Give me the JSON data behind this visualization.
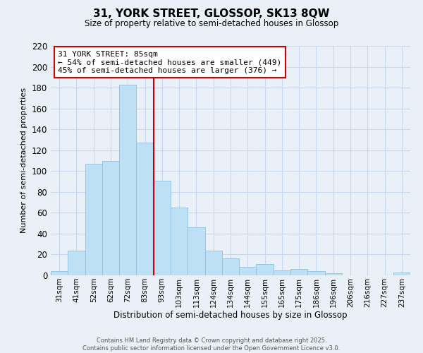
{
  "title": "31, YORK STREET, GLOSSOP, SK13 8QW",
  "subtitle": "Size of property relative to semi-detached houses in Glossop",
  "xlabel": "Distribution of semi-detached houses by size in Glossop",
  "ylabel": "Number of semi-detached properties",
  "bar_labels": [
    "31sqm",
    "41sqm",
    "52sqm",
    "62sqm",
    "72sqm",
    "83sqm",
    "93sqm",
    "103sqm",
    "113sqm",
    "124sqm",
    "134sqm",
    "144sqm",
    "155sqm",
    "165sqm",
    "175sqm",
    "186sqm",
    "196sqm",
    "206sqm",
    "216sqm",
    "227sqm",
    "237sqm"
  ],
  "bar_values": [
    4,
    24,
    107,
    110,
    183,
    127,
    91,
    65,
    46,
    24,
    16,
    8,
    11,
    5,
    6,
    4,
    2,
    0,
    0,
    0,
    3
  ],
  "bar_color": "#bee0f5",
  "bar_edge_color": "#90c0e0",
  "ylim": [
    0,
    220
  ],
  "yticks": [
    0,
    20,
    40,
    60,
    80,
    100,
    120,
    140,
    160,
    180,
    200,
    220
  ],
  "property_line_label": "31 YORK STREET: 85sqm",
  "annotation_line1": "← 54% of semi-detached houses are smaller (449)",
  "annotation_line2": "45% of semi-detached houses are larger (376) →",
  "vline_color": "#cc0000",
  "annotation_box_color": "#ffffff",
  "annotation_box_edge": "#cc0000",
  "grid_color": "#c8d8ed",
  "bg_color": "#eaf0f8",
  "footer_line1": "Contains HM Land Registry data © Crown copyright and database right 2025.",
  "footer_line2": "Contains public sector information licensed under the Open Government Licence v3.0."
}
